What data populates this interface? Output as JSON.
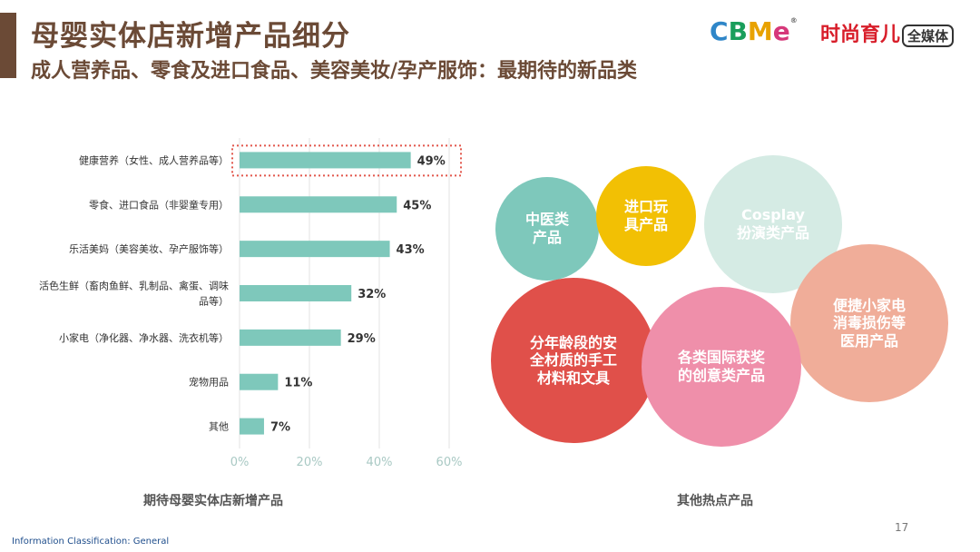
{
  "header": {
    "title": "母婴实体店新增产品细分",
    "subtitle": "成人营养品、零食及进口食品、美容美妆/孕产服饰：最期待的新品类",
    "logo_cbme_letters": [
      "C",
      "B",
      "M",
      "e"
    ],
    "logo_cbme_reg": "®",
    "logo_media_text": "时尚育儿",
    "logo_media_box": "全媒体"
  },
  "colors": {
    "brand_brown": "#6b4a36",
    "bar": "#7ec8bb",
    "highlight": "#e2574c",
    "cbme": [
      "#2f86c8",
      "#1a9e5b",
      "#e8a200",
      "#d6387a"
    ]
  },
  "chart_data": {
    "type": "bar",
    "orientation": "horizontal",
    "title": "期待母婴实体店新增产品",
    "categories": [
      "健康营养（女性、成人营养品等）",
      "零食、进口食品（非婴童专用）",
      "乐活美妈（美容美妆、孕产服饰等）",
      "活色生鲜（畜肉鱼鲜、乳制品、禽蛋、调味品等）",
      "小家电（净化器、净水器、洗衣机等）",
      "宠物用品",
      "其他"
    ],
    "category_lines": [
      [
        "健康营养（女性、成人营养品等）"
      ],
      [
        "零食、进口食品（非婴童专用）"
      ],
      [
        "乐活美妈（美容美妆、孕产服饰等）"
      ],
      [
        "活色生鲜（畜肉鱼鲜、乳制品、禽蛋、调味",
        "品等）"
      ],
      [
        "小家电（净化器、净水器、洗衣机等）"
      ],
      [
        "宠物用品"
      ],
      [
        "其他"
      ]
    ],
    "values": [
      49,
      45,
      43,
      32,
      29,
      11,
      7
    ],
    "data_labels": [
      "49%",
      "45%",
      "43%",
      "32%",
      "29%",
      "11%",
      "7%"
    ],
    "xlim": [
      0,
      60
    ],
    "xticks": [
      0,
      20,
      40,
      60
    ],
    "xtick_labels": [
      "0%",
      "20%",
      "40%",
      "60%"
    ],
    "grid": true,
    "highlighted_index": 0
  },
  "hotspots": {
    "title": "其他热点产品",
    "items": [
      {
        "label": "中医类产品",
        "lines": [
          "中医类",
          "产品"
        ],
        "color": "#7ec8bb"
      },
      {
        "label": "进口玩具产品",
        "lines": [
          "进口玩",
          "具产品"
        ],
        "color": "#f2c004"
      },
      {
        "label": "Cosplay扮演类产品",
        "lines": [
          "Cosplay",
          "扮演类产品"
        ],
        "color": "#d5ebe4"
      },
      {
        "label": "便捷小家电消毒损伤等医用产品",
        "lines": [
          "便捷小家电",
          "消毒损伤等",
          "医用产品"
        ],
        "color": "#f0ad99"
      },
      {
        "label": "分年龄段的安全材质的手工材料和文具",
        "lines": [
          "分年龄段的安",
          "全材质的手工",
          "材料和文具"
        ],
        "color": "#e0504a"
      },
      {
        "label": "各类国际获奖的创意类产品",
        "lines": [
          "各类国际获奖",
          "的创意类产品"
        ],
        "color": "#ef8faa"
      }
    ]
  },
  "footer": {
    "page_number": "17",
    "classification": "Information Classification: General"
  }
}
